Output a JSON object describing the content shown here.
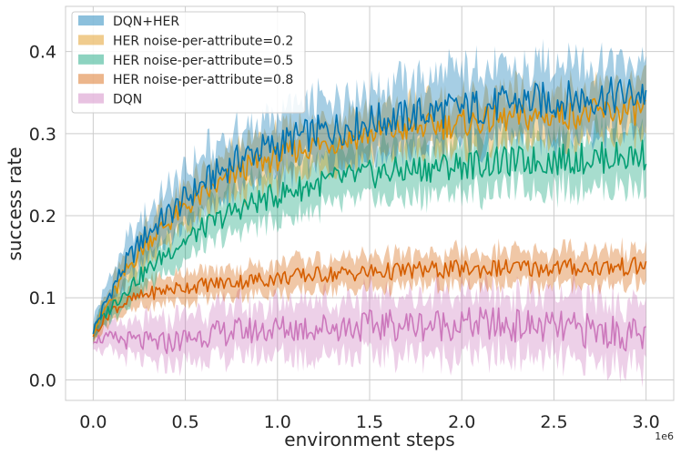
{
  "chart_data": {
    "type": "line",
    "title": "",
    "xlabel": "environment steps",
    "ylabel": "success rate",
    "x_offset_label": "1e6",
    "xlim": [
      -0.15,
      3.15
    ],
    "ylim": [
      -0.025,
      0.455
    ],
    "xticks": [
      0.0,
      0.5,
      1.0,
      1.5,
      2.0,
      2.5,
      3.0
    ],
    "xtick_labels": [
      "0.0",
      "0.5",
      "1.0",
      "1.5",
      "2.0",
      "2.5",
      "3.0"
    ],
    "yticks": [
      0.0,
      0.1,
      0.2,
      0.3,
      0.4
    ],
    "ytick_labels": [
      "0.0",
      "0.1",
      "0.2",
      "0.3",
      "0.4"
    ],
    "grid": true,
    "legend_position": "top-left",
    "x": [
      0.0,
      0.1,
      0.2,
      0.3,
      0.4,
      0.5,
      0.6,
      0.7,
      0.8,
      0.9,
      1.0,
      1.1,
      1.2,
      1.3,
      1.4,
      1.5,
      1.6,
      1.7,
      1.8,
      1.9,
      2.0,
      2.1,
      2.2,
      2.3,
      2.4,
      2.5,
      2.6,
      2.7,
      2.8,
      2.9,
      3.0
    ],
    "series": [
      {
        "name": "DQN+HER",
        "color": "#0173b2",
        "values": [
          0.06,
          0.11,
          0.15,
          0.18,
          0.2,
          0.22,
          0.24,
          0.255,
          0.27,
          0.28,
          0.285,
          0.295,
          0.3,
          0.305,
          0.31,
          0.315,
          0.318,
          0.32,
          0.325,
          0.328,
          0.33,
          0.333,
          0.335,
          0.338,
          0.34,
          0.34,
          0.342,
          0.344,
          0.345,
          0.347,
          0.35
        ],
        "band": [
          0.012,
          0.02,
          0.025,
          0.028,
          0.03,
          0.032,
          0.034,
          0.035,
          0.036,
          0.037,
          0.038,
          0.038,
          0.039,
          0.039,
          0.04,
          0.04,
          0.04,
          0.04,
          0.041,
          0.041,
          0.041,
          0.042,
          0.042,
          0.042,
          0.042,
          0.043,
          0.043,
          0.043,
          0.043,
          0.044,
          0.044
        ]
      },
      {
        "name": "HER noise-per-attribute=0.2",
        "color": "#de8f05",
        "values": [
          0.06,
          0.1,
          0.14,
          0.17,
          0.19,
          0.21,
          0.225,
          0.24,
          0.255,
          0.265,
          0.27,
          0.28,
          0.285,
          0.29,
          0.295,
          0.3,
          0.302,
          0.305,
          0.308,
          0.31,
          0.312,
          0.315,
          0.317,
          0.319,
          0.32,
          0.322,
          0.323,
          0.325,
          0.326,
          0.327,
          0.33
        ],
        "band": [
          0.01,
          0.018,
          0.02,
          0.022,
          0.024,
          0.025,
          0.026,
          0.027,
          0.028,
          0.028,
          0.029,
          0.029,
          0.03,
          0.03,
          0.03,
          0.03,
          0.03,
          0.031,
          0.031,
          0.031,
          0.031,
          0.031,
          0.032,
          0.032,
          0.032,
          0.032,
          0.032,
          0.032,
          0.033,
          0.033,
          0.033
        ]
      },
      {
        "name": "HER noise-per-attribute=0.5",
        "color": "#029e73",
        "values": [
          0.06,
          0.09,
          0.115,
          0.135,
          0.155,
          0.17,
          0.185,
          0.198,
          0.21,
          0.218,
          0.225,
          0.232,
          0.238,
          0.243,
          0.247,
          0.25,
          0.253,
          0.255,
          0.258,
          0.26,
          0.262,
          0.263,
          0.265,
          0.266,
          0.267,
          0.268,
          0.269,
          0.27,
          0.271,
          0.272,
          0.275
        ],
        "band": [
          0.01,
          0.015,
          0.018,
          0.02,
          0.022,
          0.024,
          0.025,
          0.026,
          0.027,
          0.028,
          0.029,
          0.03,
          0.03,
          0.031,
          0.031,
          0.032,
          0.032,
          0.032,
          0.033,
          0.033,
          0.033,
          0.034,
          0.034,
          0.034,
          0.034,
          0.035,
          0.035,
          0.035,
          0.035,
          0.036,
          0.036
        ]
      },
      {
        "name": "HER noise-per-attribute=0.8",
        "color": "#d55e00",
        "values": [
          0.055,
          0.085,
          0.097,
          0.105,
          0.11,
          0.113,
          0.116,
          0.118,
          0.12,
          0.122,
          0.124,
          0.126,
          0.128,
          0.129,
          0.13,
          0.131,
          0.132,
          0.133,
          0.134,
          0.134,
          0.135,
          0.135,
          0.136,
          0.136,
          0.136,
          0.137,
          0.137,
          0.137,
          0.137,
          0.138,
          0.138
        ],
        "band": [
          0.008,
          0.012,
          0.014,
          0.015,
          0.016,
          0.016,
          0.017,
          0.017,
          0.018,
          0.018,
          0.018,
          0.019,
          0.019,
          0.019,
          0.019,
          0.02,
          0.02,
          0.02,
          0.02,
          0.02,
          0.02,
          0.02,
          0.021,
          0.021,
          0.021,
          0.021,
          0.021,
          0.021,
          0.021,
          0.021,
          0.021
        ]
      },
      {
        "name": "DQN",
        "color": "#cc78bc",
        "values": [
          0.05,
          0.05,
          0.048,
          0.045,
          0.045,
          0.05,
          0.055,
          0.057,
          0.06,
          0.06,
          0.062,
          0.063,
          0.064,
          0.065,
          0.065,
          0.066,
          0.067,
          0.067,
          0.067,
          0.068,
          0.068,
          0.068,
          0.067,
          0.066,
          0.065,
          0.063,
          0.061,
          0.06,
          0.058,
          0.056,
          0.05
        ],
        "band": [
          0.01,
          0.018,
          0.022,
          0.025,
          0.026,
          0.027,
          0.028,
          0.029,
          0.03,
          0.031,
          0.032,
          0.033,
          0.034,
          0.034,
          0.035,
          0.035,
          0.036,
          0.036,
          0.037,
          0.037,
          0.037,
          0.038,
          0.038,
          0.038,
          0.038,
          0.039,
          0.039,
          0.039,
          0.039,
          0.039,
          0.04
        ]
      }
    ]
  }
}
